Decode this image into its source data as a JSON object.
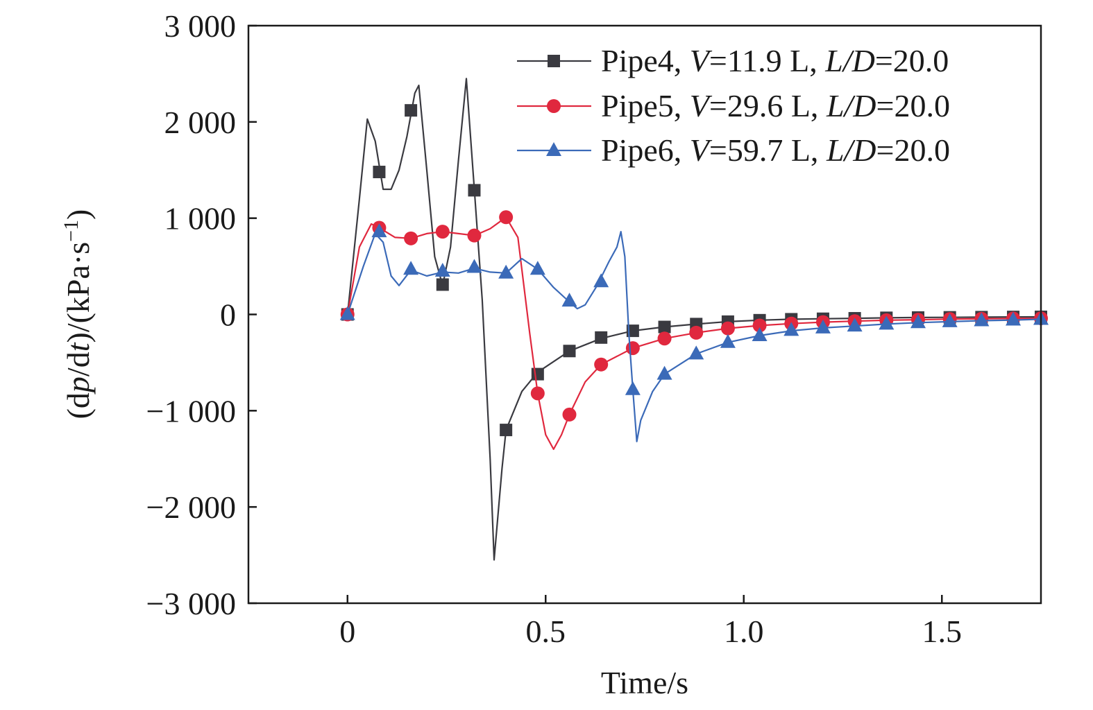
{
  "chart_data": {
    "type": "line",
    "xlabel": "Time/s",
    "ylabel_parts": [
      "(d",
      "p",
      "/d",
      "t",
      ")/(kPa·s",
      "−1",
      ")"
    ],
    "xlim": [
      -0.25,
      1.75
    ],
    "ylim": [
      -3000,
      3000
    ],
    "x_ticks": [
      0,
      0.5,
      1.0,
      1.5
    ],
    "x_tick_labels": [
      "0",
      "0.5",
      "1.0",
      "1.5"
    ],
    "y_ticks": [
      -3000,
      -2000,
      -1000,
      0,
      1000,
      2000,
      3000
    ],
    "y_tick_labels": [
      "−3 000",
      "−2 000",
      "−1 000",
      "0",
      "1 000",
      "2 000",
      "3 000"
    ],
    "grid": false,
    "legend_position": "top-right",
    "series": [
      {
        "label": {
          "name": "Pipe4",
          "sep1": ", ",
          "var1": "V",
          "val1": "=11.9 L, ",
          "var2": "L/D",
          "val2": "=20.0"
        },
        "color": "#3a3a40",
        "marker": "square",
        "line": [
          [
            0,
            0
          ],
          [
            0.03,
            1200
          ],
          [
            0.05,
            2030
          ],
          [
            0.07,
            1800
          ],
          [
            0.09,
            1300
          ],
          [
            0.11,
            1300
          ],
          [
            0.13,
            1500
          ],
          [
            0.15,
            1850
          ],
          [
            0.17,
            2300
          ],
          [
            0.18,
            2380
          ],
          [
            0.2,
            1500
          ],
          [
            0.22,
            600
          ],
          [
            0.24,
            300
          ],
          [
            0.26,
            700
          ],
          [
            0.28,
            1600
          ],
          [
            0.3,
            2450
          ],
          [
            0.32,
            1300
          ],
          [
            0.34,
            150
          ],
          [
            0.36,
            -1500
          ],
          [
            0.37,
            -2550
          ],
          [
            0.39,
            -1600
          ],
          [
            0.4,
            -1200
          ],
          [
            0.44,
            -800
          ],
          [
            0.48,
            -600
          ],
          [
            0.56,
            -380
          ],
          [
            0.64,
            -250
          ],
          [
            0.72,
            -170
          ],
          [
            0.8,
            -130
          ],
          [
            0.88,
            -100
          ],
          [
            0.96,
            -75
          ],
          [
            1.04,
            -60
          ],
          [
            1.12,
            -50
          ],
          [
            1.2,
            -45
          ],
          [
            1.28,
            -40
          ],
          [
            1.36,
            -35
          ],
          [
            1.44,
            -32
          ],
          [
            1.52,
            -30
          ],
          [
            1.6,
            -28
          ],
          [
            1.68,
            -26
          ],
          [
            1.75,
            -25
          ]
        ],
        "markers": [
          [
            0,
            0
          ],
          [
            0.08,
            1480
          ],
          [
            0.16,
            2120
          ],
          [
            0.24,
            310
          ],
          [
            0.32,
            1290
          ],
          [
            0.4,
            -1200
          ],
          [
            0.48,
            -620
          ],
          [
            0.56,
            -380
          ],
          [
            0.64,
            -240
          ],
          [
            0.72,
            -170
          ],
          [
            0.8,
            -130
          ],
          [
            0.88,
            -100
          ],
          [
            0.96,
            -75
          ],
          [
            1.04,
            -60
          ],
          [
            1.12,
            -50
          ],
          [
            1.2,
            -45
          ],
          [
            1.28,
            -40
          ],
          [
            1.36,
            -35
          ],
          [
            1.44,
            -32
          ],
          [
            1.52,
            -30
          ],
          [
            1.6,
            -28
          ],
          [
            1.68,
            -26
          ],
          [
            1.75,
            -25
          ]
        ]
      },
      {
        "label": {
          "name": "Pipe5",
          "sep1": ", ",
          "var1": "V",
          "val1": "=29.6 L, ",
          "var2": "L/D",
          "val2": "=20.0"
        },
        "color": "#e0283e",
        "marker": "circle",
        "line": [
          [
            0,
            0
          ],
          [
            0.03,
            700
          ],
          [
            0.06,
            940
          ],
          [
            0.08,
            900
          ],
          [
            0.12,
            800
          ],
          [
            0.16,
            790
          ],
          [
            0.2,
            840
          ],
          [
            0.24,
            860
          ],
          [
            0.28,
            840
          ],
          [
            0.32,
            820
          ],
          [
            0.36,
            890
          ],
          [
            0.4,
            1010
          ],
          [
            0.43,
            800
          ],
          [
            0.46,
            -200
          ],
          [
            0.48,
            -820
          ],
          [
            0.5,
            -1250
          ],
          [
            0.52,
            -1400
          ],
          [
            0.54,
            -1250
          ],
          [
            0.56,
            -1040
          ],
          [
            0.6,
            -700
          ],
          [
            0.64,
            -520
          ],
          [
            0.72,
            -350
          ],
          [
            0.8,
            -250
          ],
          [
            0.88,
            -190
          ],
          [
            0.96,
            -145
          ],
          [
            1.04,
            -115
          ],
          [
            1.12,
            -95
          ],
          [
            1.2,
            -80
          ],
          [
            1.28,
            -70
          ],
          [
            1.36,
            -60
          ],
          [
            1.44,
            -55
          ],
          [
            1.52,
            -48
          ],
          [
            1.6,
            -45
          ],
          [
            1.68,
            -42
          ],
          [
            1.75,
            -40
          ]
        ],
        "markers": [
          [
            0,
            0
          ],
          [
            0.08,
            900
          ],
          [
            0.16,
            790
          ],
          [
            0.24,
            860
          ],
          [
            0.32,
            820
          ],
          [
            0.4,
            1010
          ],
          [
            0.48,
            -820
          ],
          [
            0.56,
            -1040
          ],
          [
            0.64,
            -520
          ],
          [
            0.72,
            -350
          ],
          [
            0.8,
            -250
          ],
          [
            0.88,
            -190
          ],
          [
            0.96,
            -145
          ],
          [
            1.04,
            -115
          ],
          [
            1.12,
            -95
          ],
          [
            1.2,
            -80
          ],
          [
            1.28,
            -70
          ],
          [
            1.36,
            -60
          ],
          [
            1.44,
            -55
          ],
          [
            1.52,
            -48
          ],
          [
            1.6,
            -45
          ],
          [
            1.68,
            -42
          ],
          [
            1.75,
            -40
          ]
        ]
      },
      {
        "label": {
          "name": "Pipe6",
          "sep1": ", ",
          "var1": "V",
          "val1": "=59.7 L, ",
          "var2": "L/D",
          "val2": "=20.0"
        },
        "color": "#3b6ab8",
        "marker": "triangle",
        "line": [
          [
            0,
            0
          ],
          [
            0.04,
            500
          ],
          [
            0.07,
            840
          ],
          [
            0.09,
            750
          ],
          [
            0.11,
            400
          ],
          [
            0.13,
            300
          ],
          [
            0.16,
            460
          ],
          [
            0.2,
            400
          ],
          [
            0.24,
            440
          ],
          [
            0.28,
            430
          ],
          [
            0.32,
            480
          ],
          [
            0.36,
            440
          ],
          [
            0.4,
            430
          ],
          [
            0.44,
            580
          ],
          [
            0.48,
            470
          ],
          [
            0.52,
            280
          ],
          [
            0.56,
            130
          ],
          [
            0.58,
            60
          ],
          [
            0.6,
            100
          ],
          [
            0.63,
            300
          ],
          [
            0.66,
            550
          ],
          [
            0.68,
            700
          ],
          [
            0.69,
            860
          ],
          [
            0.7,
            600
          ],
          [
            0.71,
            -200
          ],
          [
            0.72,
            -780
          ],
          [
            0.73,
            -1320
          ],
          [
            0.74,
            -1100
          ],
          [
            0.77,
            -800
          ],
          [
            0.8,
            -620
          ],
          [
            0.88,
            -410
          ],
          [
            0.96,
            -290
          ],
          [
            1.04,
            -220
          ],
          [
            1.12,
            -170
          ],
          [
            1.2,
            -140
          ],
          [
            1.28,
            -120
          ],
          [
            1.36,
            -100
          ],
          [
            1.44,
            -85
          ],
          [
            1.52,
            -75
          ],
          [
            1.6,
            -65
          ],
          [
            1.68,
            -58
          ],
          [
            1.75,
            -50
          ]
        ],
        "markers": [
          [
            0,
            0
          ],
          [
            0.08,
            860
          ],
          [
            0.16,
            470
          ],
          [
            0.24,
            450
          ],
          [
            0.32,
            490
          ],
          [
            0.4,
            430
          ],
          [
            0.48,
            470
          ],
          [
            0.56,
            140
          ],
          [
            0.64,
            340
          ],
          [
            0.72,
            -780
          ],
          [
            0.8,
            -620
          ],
          [
            0.88,
            -410
          ],
          [
            0.96,
            -290
          ],
          [
            1.04,
            -220
          ],
          [
            1.12,
            -165
          ],
          [
            1.2,
            -140
          ],
          [
            1.28,
            -120
          ],
          [
            1.36,
            -100
          ],
          [
            1.44,
            -85
          ],
          [
            1.52,
            -75
          ],
          [
            1.6,
            -65
          ],
          [
            1.68,
            -58
          ],
          [
            1.75,
            -50
          ]
        ]
      }
    ]
  }
}
